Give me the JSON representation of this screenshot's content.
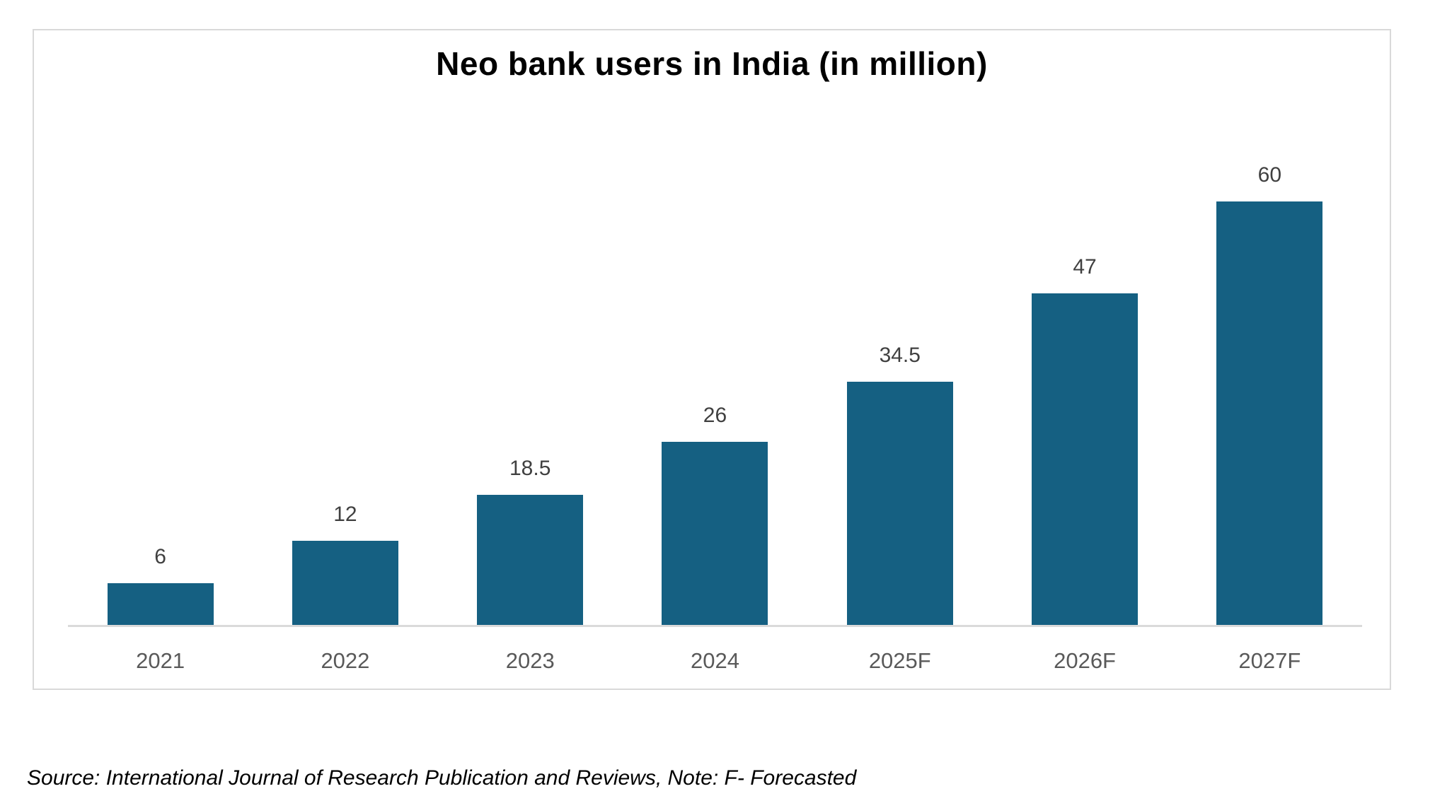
{
  "chart_data": {
    "type": "bar",
    "title": "Neo bank users in India (in million)",
    "categories": [
      "2021",
      "2022",
      "2023",
      "2024",
      "2025F",
      "2026F",
      "2027F"
    ],
    "values": [
      6,
      12,
      18.5,
      26,
      34.5,
      47,
      60
    ],
    "data_labels": [
      "6",
      "12",
      "18.5",
      "26",
      "34.5",
      "47",
      "60"
    ],
    "xlabel": "",
    "ylabel": "",
    "ylim": [
      0,
      60
    ],
    "grid": false,
    "legend": false,
    "y_axis_visible": false,
    "bar_color": "#156082",
    "value_label_color": "#404040",
    "tick_label_color": "#595959",
    "axis_line_color": "#dadada"
  },
  "panel": {
    "border_color": "#d9d9d9",
    "background": "#ffffff"
  },
  "source_note": "Source: International Journal of Research Publication and Reviews, Note: F- Forecasted"
}
